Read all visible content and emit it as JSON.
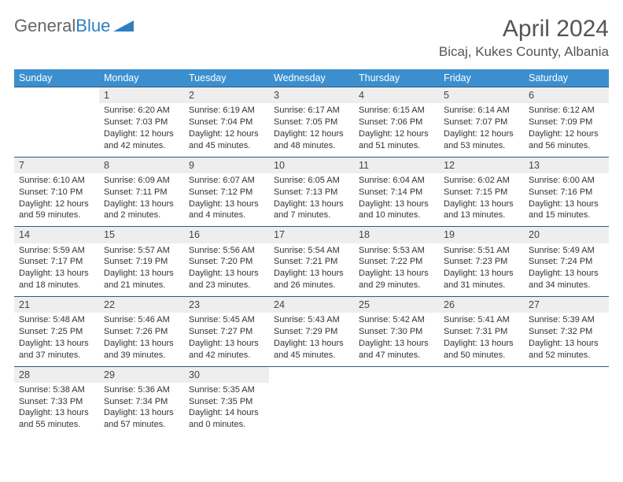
{
  "brand": {
    "part1": "General",
    "part2": "Blue"
  },
  "title": "April 2024",
  "location": "Bicaj, Kukes County, Albania",
  "colors": {
    "header_bg": "#3c8fcf",
    "header_text": "#ffffff",
    "rule": "#2a5b85",
    "daynum_bg": "#eeeeee",
    "brand_accent": "#2f7fbf"
  },
  "weekdays": [
    "Sunday",
    "Monday",
    "Tuesday",
    "Wednesday",
    "Thursday",
    "Friday",
    "Saturday"
  ],
  "weeks": [
    [
      {
        "n": "",
        "sunrise": "",
        "sunset": "",
        "daylight1": "",
        "daylight2": ""
      },
      {
        "n": "1",
        "sunrise": "Sunrise: 6:20 AM",
        "sunset": "Sunset: 7:03 PM",
        "daylight1": "Daylight: 12 hours",
        "daylight2": "and 42 minutes."
      },
      {
        "n": "2",
        "sunrise": "Sunrise: 6:19 AM",
        "sunset": "Sunset: 7:04 PM",
        "daylight1": "Daylight: 12 hours",
        "daylight2": "and 45 minutes."
      },
      {
        "n": "3",
        "sunrise": "Sunrise: 6:17 AM",
        "sunset": "Sunset: 7:05 PM",
        "daylight1": "Daylight: 12 hours",
        "daylight2": "and 48 minutes."
      },
      {
        "n": "4",
        "sunrise": "Sunrise: 6:15 AM",
        "sunset": "Sunset: 7:06 PM",
        "daylight1": "Daylight: 12 hours",
        "daylight2": "and 51 minutes."
      },
      {
        "n": "5",
        "sunrise": "Sunrise: 6:14 AM",
        "sunset": "Sunset: 7:07 PM",
        "daylight1": "Daylight: 12 hours",
        "daylight2": "and 53 minutes."
      },
      {
        "n": "6",
        "sunrise": "Sunrise: 6:12 AM",
        "sunset": "Sunset: 7:09 PM",
        "daylight1": "Daylight: 12 hours",
        "daylight2": "and 56 minutes."
      }
    ],
    [
      {
        "n": "7",
        "sunrise": "Sunrise: 6:10 AM",
        "sunset": "Sunset: 7:10 PM",
        "daylight1": "Daylight: 12 hours",
        "daylight2": "and 59 minutes."
      },
      {
        "n": "8",
        "sunrise": "Sunrise: 6:09 AM",
        "sunset": "Sunset: 7:11 PM",
        "daylight1": "Daylight: 13 hours",
        "daylight2": "and 2 minutes."
      },
      {
        "n": "9",
        "sunrise": "Sunrise: 6:07 AM",
        "sunset": "Sunset: 7:12 PM",
        "daylight1": "Daylight: 13 hours",
        "daylight2": "and 4 minutes."
      },
      {
        "n": "10",
        "sunrise": "Sunrise: 6:05 AM",
        "sunset": "Sunset: 7:13 PM",
        "daylight1": "Daylight: 13 hours",
        "daylight2": "and 7 minutes."
      },
      {
        "n": "11",
        "sunrise": "Sunrise: 6:04 AM",
        "sunset": "Sunset: 7:14 PM",
        "daylight1": "Daylight: 13 hours",
        "daylight2": "and 10 minutes."
      },
      {
        "n": "12",
        "sunrise": "Sunrise: 6:02 AM",
        "sunset": "Sunset: 7:15 PM",
        "daylight1": "Daylight: 13 hours",
        "daylight2": "and 13 minutes."
      },
      {
        "n": "13",
        "sunrise": "Sunrise: 6:00 AM",
        "sunset": "Sunset: 7:16 PM",
        "daylight1": "Daylight: 13 hours",
        "daylight2": "and 15 minutes."
      }
    ],
    [
      {
        "n": "14",
        "sunrise": "Sunrise: 5:59 AM",
        "sunset": "Sunset: 7:17 PM",
        "daylight1": "Daylight: 13 hours",
        "daylight2": "and 18 minutes."
      },
      {
        "n": "15",
        "sunrise": "Sunrise: 5:57 AM",
        "sunset": "Sunset: 7:19 PM",
        "daylight1": "Daylight: 13 hours",
        "daylight2": "and 21 minutes."
      },
      {
        "n": "16",
        "sunrise": "Sunrise: 5:56 AM",
        "sunset": "Sunset: 7:20 PM",
        "daylight1": "Daylight: 13 hours",
        "daylight2": "and 23 minutes."
      },
      {
        "n": "17",
        "sunrise": "Sunrise: 5:54 AM",
        "sunset": "Sunset: 7:21 PM",
        "daylight1": "Daylight: 13 hours",
        "daylight2": "and 26 minutes."
      },
      {
        "n": "18",
        "sunrise": "Sunrise: 5:53 AM",
        "sunset": "Sunset: 7:22 PM",
        "daylight1": "Daylight: 13 hours",
        "daylight2": "and 29 minutes."
      },
      {
        "n": "19",
        "sunrise": "Sunrise: 5:51 AM",
        "sunset": "Sunset: 7:23 PM",
        "daylight1": "Daylight: 13 hours",
        "daylight2": "and 31 minutes."
      },
      {
        "n": "20",
        "sunrise": "Sunrise: 5:49 AM",
        "sunset": "Sunset: 7:24 PM",
        "daylight1": "Daylight: 13 hours",
        "daylight2": "and 34 minutes."
      }
    ],
    [
      {
        "n": "21",
        "sunrise": "Sunrise: 5:48 AM",
        "sunset": "Sunset: 7:25 PM",
        "daylight1": "Daylight: 13 hours",
        "daylight2": "and 37 minutes."
      },
      {
        "n": "22",
        "sunrise": "Sunrise: 5:46 AM",
        "sunset": "Sunset: 7:26 PM",
        "daylight1": "Daylight: 13 hours",
        "daylight2": "and 39 minutes."
      },
      {
        "n": "23",
        "sunrise": "Sunrise: 5:45 AM",
        "sunset": "Sunset: 7:27 PM",
        "daylight1": "Daylight: 13 hours",
        "daylight2": "and 42 minutes."
      },
      {
        "n": "24",
        "sunrise": "Sunrise: 5:43 AM",
        "sunset": "Sunset: 7:29 PM",
        "daylight1": "Daylight: 13 hours",
        "daylight2": "and 45 minutes."
      },
      {
        "n": "25",
        "sunrise": "Sunrise: 5:42 AM",
        "sunset": "Sunset: 7:30 PM",
        "daylight1": "Daylight: 13 hours",
        "daylight2": "and 47 minutes."
      },
      {
        "n": "26",
        "sunrise": "Sunrise: 5:41 AM",
        "sunset": "Sunset: 7:31 PM",
        "daylight1": "Daylight: 13 hours",
        "daylight2": "and 50 minutes."
      },
      {
        "n": "27",
        "sunrise": "Sunrise: 5:39 AM",
        "sunset": "Sunset: 7:32 PM",
        "daylight1": "Daylight: 13 hours",
        "daylight2": "and 52 minutes."
      }
    ],
    [
      {
        "n": "28",
        "sunrise": "Sunrise: 5:38 AM",
        "sunset": "Sunset: 7:33 PM",
        "daylight1": "Daylight: 13 hours",
        "daylight2": "and 55 minutes."
      },
      {
        "n": "29",
        "sunrise": "Sunrise: 5:36 AM",
        "sunset": "Sunset: 7:34 PM",
        "daylight1": "Daylight: 13 hours",
        "daylight2": "and 57 minutes."
      },
      {
        "n": "30",
        "sunrise": "Sunrise: 5:35 AM",
        "sunset": "Sunset: 7:35 PM",
        "daylight1": "Daylight: 14 hours",
        "daylight2": "and 0 minutes."
      },
      {
        "n": "",
        "sunrise": "",
        "sunset": "",
        "daylight1": "",
        "daylight2": ""
      },
      {
        "n": "",
        "sunrise": "",
        "sunset": "",
        "daylight1": "",
        "daylight2": ""
      },
      {
        "n": "",
        "sunrise": "",
        "sunset": "",
        "daylight1": "",
        "daylight2": ""
      },
      {
        "n": "",
        "sunrise": "",
        "sunset": "",
        "daylight1": "",
        "daylight2": ""
      }
    ]
  ]
}
